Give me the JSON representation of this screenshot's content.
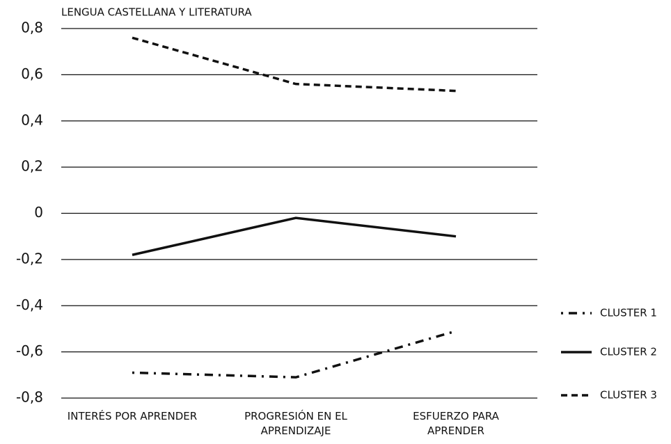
{
  "chart_data": {
    "type": "line",
    "title": "LENGUA CASTELLANA Y LITERATURA",
    "categories": [
      "INTERÉS POR APRENDER",
      "PROGRESIÓN EN EL APRENDIZAJE",
      "ESFUERZO PARA APRENDER"
    ],
    "series": [
      {
        "name": "CLUSTER 1",
        "color": "#111111",
        "dash": "dash-dot",
        "values": [
          -0.69,
          -0.71,
          -0.51
        ]
      },
      {
        "name": "CLUSTER 2",
        "color": "#111111",
        "dash": "solid",
        "values": [
          -0.18,
          -0.02,
          -0.1
        ]
      },
      {
        "name": "CLUSTER 3",
        "color": "#111111",
        "dash": "dashed",
        "values": [
          0.76,
          0.56,
          0.53
        ]
      }
    ],
    "ylim": [
      -0.8,
      0.8
    ],
    "yticks": [
      {
        "value": -0.8,
        "label": "-0,8"
      },
      {
        "value": -0.6,
        "label": "-0,6"
      },
      {
        "value": -0.4,
        "label": "-0,4"
      },
      {
        "value": -0.2,
        "label": "-0,2"
      },
      0,
      {
        "value": 0.2,
        "label": "0,2"
      },
      {
        "value": 0.4,
        "label": "0,4"
      },
      {
        "value": 0.6,
        "label": "0,6"
      },
      {
        "value": 0.8,
        "label": "0,8"
      }
    ],
    "grid": true,
    "legend": "right"
  }
}
